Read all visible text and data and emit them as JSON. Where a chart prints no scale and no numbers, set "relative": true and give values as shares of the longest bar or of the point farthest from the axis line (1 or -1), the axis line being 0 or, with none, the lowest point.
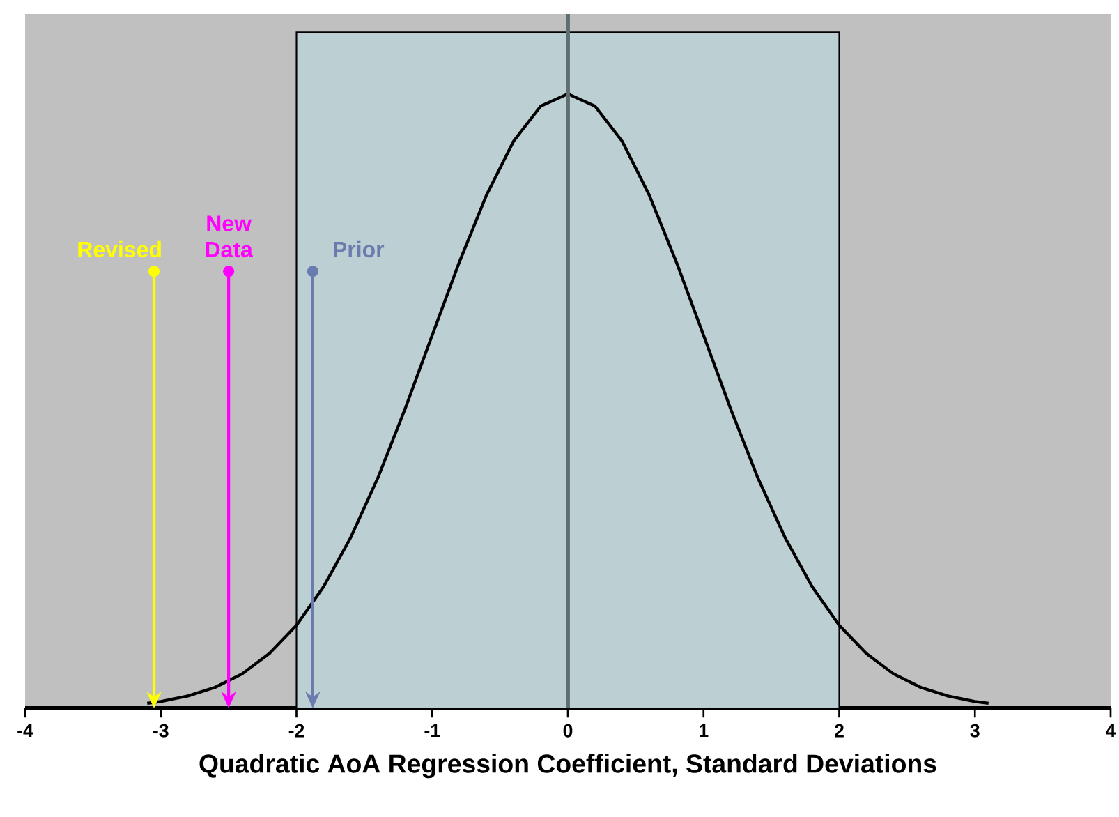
{
  "chart_data": {
    "type": "line",
    "relative": true,
    "xlabel": "Quadratic AoA Regression Coefficient, Standard Deviations",
    "x": [
      -3.1,
      -3.0,
      -2.8,
      -2.6,
      -2.4,
      -2.2,
      -2.0,
      -1.8,
      -1.6,
      -1.4,
      -1.2,
      -1.0,
      -0.8,
      -0.6,
      -0.4,
      -0.2,
      0,
      0.2,
      0.4,
      0.6,
      0.8,
      1.0,
      1.2,
      1.4,
      1.6,
      1.8,
      2.0,
      2.2,
      2.4,
      2.6,
      2.8,
      3.0,
      3.1
    ],
    "series": [
      {
        "color": "#000000",
        "values": [
          0.008,
          0.011,
          0.02,
          0.034,
          0.056,
          0.089,
          0.135,
          0.198,
          0.278,
          0.375,
          0.487,
          0.607,
          0.726,
          0.835,
          0.923,
          0.98,
          1,
          0.98,
          0.923,
          0.835,
          0.726,
          0.607,
          0.487,
          0.375,
          0.278,
          0.198,
          0.135,
          0.089,
          0.056,
          0.034,
          0.02,
          0.011,
          0.008
        ]
      }
    ],
    "xlim": [
      -4,
      4
    ],
    "xticks": [
      -4,
      -3,
      -2,
      -1,
      0,
      1,
      2,
      3,
      4
    ],
    "grid": false,
    "marker": "none",
    "line_style": "solid",
    "bands": [
      {
        "axis": "x",
        "from": -2,
        "to": 2,
        "color": "#bcd0d4"
      }
    ],
    "ref_lines": [
      {
        "axis": "x",
        "value": 0,
        "color": "#5f6f6f"
      },
      {
        "axis": "x",
        "value": -3.05,
        "label": "Revised",
        "color": "#ffff00"
      },
      {
        "axis": "x",
        "value": -2.5,
        "label": "New Data",
        "color": "#ff00ff"
      },
      {
        "axis": "x",
        "value": -1.88,
        "label": "Prior",
        "color": "#6a7bb0"
      }
    ]
  }
}
